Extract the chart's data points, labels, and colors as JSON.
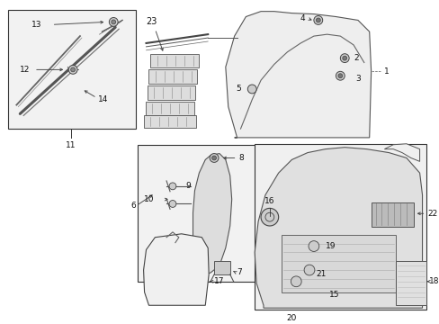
{
  "bg": "#ffffff",
  "fw": 4.89,
  "fh": 3.6,
  "dpi": 100,
  "gray_fill": "#ebebeb",
  "box_ec": "#333333",
  "line_c": "#444444",
  "text_c": "#111111"
}
